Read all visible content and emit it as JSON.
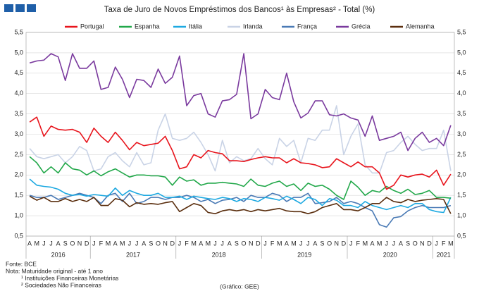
{
  "chart_data": {
    "type": "line",
    "title": "Taxa de Juro de Novos Empréstimos dos Bancos¹ às Empresas² - Total (%)",
    "categories": [
      "A",
      "M",
      "J",
      "J",
      "A",
      "S",
      "O",
      "N",
      "D",
      "J",
      "F",
      "M",
      "A",
      "M",
      "J",
      "J",
      "A",
      "S",
      "O",
      "N",
      "D",
      "J",
      "F",
      "M",
      "A",
      "M",
      "J",
      "J",
      "A",
      "S",
      "O",
      "N",
      "D",
      "J",
      "F",
      "M",
      "A",
      "M",
      "J",
      "J",
      "A",
      "S",
      "O",
      "N",
      "D",
      "J",
      "F",
      "M",
      "A",
      "M",
      "J",
      "J",
      "A",
      "S",
      "O",
      "N",
      "D",
      "J",
      "F",
      "M"
    ],
    "year_groups": [
      {
        "label": "2016",
        "months": 9
      },
      {
        "label": "2017",
        "months": 12
      },
      {
        "label": "2018",
        "months": 12
      },
      {
        "label": "2019",
        "months": 12
      },
      {
        "label": "2020",
        "months": 12
      },
      {
        "label": "2021",
        "months": 3
      }
    ],
    "series": [
      {
        "name": "Portugal",
        "color": "#e8141c",
        "values": [
          3.3,
          3.42,
          2.95,
          3.2,
          3.12,
          3.1,
          3.12,
          3.05,
          2.8,
          3.15,
          2.95,
          2.8,
          3.05,
          2.85,
          2.62,
          2.8,
          2.72,
          2.75,
          2.78,
          2.95,
          2.6,
          2.15,
          2.2,
          2.5,
          2.42,
          2.6,
          2.55,
          2.52,
          2.35,
          2.35,
          2.33,
          2.38,
          2.42,
          2.45,
          2.42,
          2.42,
          2.3,
          2.4,
          2.3,
          2.28,
          2.25,
          2.18,
          2.2,
          2.4,
          2.3,
          2.2,
          2.32,
          2.2,
          2.2,
          2.05,
          1.65,
          1.75,
          2.0,
          1.95,
          2.0,
          2.02,
          1.95,
          2.12,
          1.75,
          2.02
        ]
      },
      {
        "name": "Espanha",
        "color": "#22a84a",
        "values": [
          2.45,
          2.3,
          2.05,
          2.2,
          2.05,
          2.3,
          2.15,
          2.12,
          2.0,
          2.1,
          1.98,
          2.08,
          2.15,
          2.05,
          1.95,
          2.0,
          2.0,
          1.98,
          1.98,
          1.95,
          1.75,
          1.95,
          1.85,
          1.88,
          1.75,
          1.8,
          1.8,
          1.82,
          1.8,
          1.78,
          1.72,
          1.9,
          1.75,
          1.72,
          1.8,
          1.85,
          1.72,
          1.78,
          1.62,
          1.8,
          1.72,
          1.75,
          1.65,
          1.5,
          1.4,
          1.85,
          1.7,
          1.5,
          1.62,
          1.58,
          1.72,
          1.62,
          1.55,
          1.65,
          1.52,
          1.55,
          1.62,
          1.45,
          1.45,
          1.43
        ]
      },
      {
        "name": "Itália",
        "color": "#1ea9e1",
        "values": [
          1.9,
          1.75,
          1.72,
          1.7,
          1.65,
          1.55,
          1.5,
          1.52,
          1.48,
          1.52,
          1.5,
          1.48,
          1.68,
          1.5,
          1.62,
          1.55,
          1.5,
          1.5,
          1.55,
          1.45,
          1.45,
          1.48,
          1.4,
          1.48,
          1.45,
          1.42,
          1.4,
          1.45,
          1.42,
          1.35,
          1.42,
          1.4,
          1.35,
          1.45,
          1.42,
          1.38,
          1.48,
          1.4,
          1.3,
          1.45,
          1.4,
          1.25,
          1.42,
          1.38,
          1.25,
          1.25,
          1.2,
          1.35,
          1.25,
          1.2,
          1.15,
          1.2,
          1.25,
          1.2,
          1.3,
          1.3,
          1.15,
          1.1,
          1.08,
          1.45
        ]
      },
      {
        "name": "Irlanda",
        "color": "#c9d3e6",
        "values": [
          2.65,
          2.45,
          2.4,
          2.45,
          2.5,
          2.3,
          2.45,
          2.7,
          2.6,
          2.1,
          2.15,
          2.45,
          2.55,
          2.35,
          2.2,
          2.55,
          2.25,
          2.3,
          3.1,
          3.5,
          2.9,
          2.85,
          2.9,
          3.05,
          2.8,
          2.5,
          2.1,
          2.85,
          2.3,
          2.45,
          2.35,
          2.4,
          2.65,
          2.4,
          2.25,
          2.9,
          2.7,
          2.85,
          2.3,
          2.9,
          2.85,
          3.1,
          3.1,
          3.7,
          2.5,
          2.95,
          3.25,
          2.25,
          2.05,
          2.05,
          2.55,
          2.6,
          2.8,
          2.95,
          2.75,
          2.6,
          2.65,
          2.65,
          3.1,
          2.1
        ]
      },
      {
        "name": "França",
        "color": "#4a7ab5",
        "values": [
          1.5,
          1.45,
          1.45,
          1.5,
          1.4,
          1.45,
          1.5,
          1.55,
          1.5,
          1.45,
          1.3,
          1.5,
          1.55,
          1.35,
          1.55,
          1.3,
          1.35,
          1.45,
          1.45,
          1.4,
          1.45,
          1.45,
          1.5,
          1.45,
          1.35,
          1.4,
          1.3,
          1.38,
          1.4,
          1.45,
          1.35,
          1.5,
          1.45,
          1.45,
          1.55,
          1.5,
          1.35,
          1.45,
          1.45,
          1.55,
          1.3,
          1.32,
          1.35,
          1.45,
          1.3,
          1.35,
          1.3,
          1.2,
          1.12,
          0.78,
          0.72,
          0.95,
          0.98,
          1.12,
          1.2,
          1.25,
          1.2,
          1.2,
          1.2,
          1.25
        ]
      },
      {
        "name": "Grécia",
        "color": "#7a3a9e",
        "values": [
          4.75,
          4.8,
          4.82,
          4.98,
          4.9,
          4.32,
          4.98,
          4.62,
          4.62,
          4.8,
          4.1,
          4.15,
          4.65,
          4.35,
          3.9,
          4.35,
          4.32,
          4.15,
          4.6,
          4.25,
          4.4,
          4.92,
          3.7,
          3.95,
          4.0,
          3.5,
          3.42,
          3.82,
          3.85,
          3.98,
          4.98,
          3.38,
          3.5,
          4.1,
          3.9,
          3.85,
          4.5,
          3.8,
          3.4,
          3.52,
          3.82,
          3.82,
          3.48,
          3.45,
          3.5,
          3.4,
          3.35,
          2.95,
          3.45,
          2.85,
          2.9,
          2.95,
          3.05,
          2.6,
          2.9,
          3.05,
          2.8,
          2.9,
          2.72,
          3.22
        ]
      },
      {
        "name": "Alemanha",
        "color": "#5a2e0e",
        "values": [
          1.48,
          1.38,
          1.45,
          1.35,
          1.35,
          1.42,
          1.35,
          1.4,
          1.35,
          1.45,
          1.25,
          1.25,
          1.42,
          1.38,
          1.22,
          1.32,
          1.28,
          1.3,
          1.28,
          1.32,
          1.35,
          1.1,
          1.2,
          1.3,
          1.25,
          1.08,
          1.05,
          1.12,
          1.15,
          1.12,
          1.15,
          1.1,
          1.15,
          1.12,
          1.15,
          1.18,
          1.12,
          1.1,
          1.1,
          1.05,
          1.1,
          1.2,
          1.25,
          1.3,
          1.15,
          1.15,
          1.12,
          1.2,
          1.3,
          1.3,
          1.45,
          1.35,
          1.32,
          1.4,
          1.35,
          1.38,
          1.4,
          1.42,
          1.4,
          1.05
        ]
      }
    ],
    "ylim": [
      0.5,
      5.5
    ],
    "yticks": [
      {
        "value": 0.5,
        "label": "0,5"
      },
      {
        "value": 1.0,
        "label": "1,0"
      },
      {
        "value": 1.5,
        "label": "1,5"
      },
      {
        "value": 2.0,
        "label": "2,0"
      },
      {
        "value": 2.5,
        "label": "2,5"
      },
      {
        "value": 3.0,
        "label": "3,0"
      },
      {
        "value": 3.5,
        "label": "3,5"
      },
      {
        "value": 4.0,
        "label": "4,0"
      },
      {
        "value": 4.5,
        "label": "4,5"
      },
      {
        "value": 5.0,
        "label": "5,0"
      },
      {
        "value": 5.5,
        "label": "5,5"
      }
    ],
    "grid": true,
    "notes": [
      "Fonte: BCE",
      "Nota: Maturidade original - até 1 ano",
      "¹ Instituições Financeiras Monetárias",
      "² Sociedades Não Financeiras"
    ],
    "credit": "(Gráfico: GEE)"
  }
}
